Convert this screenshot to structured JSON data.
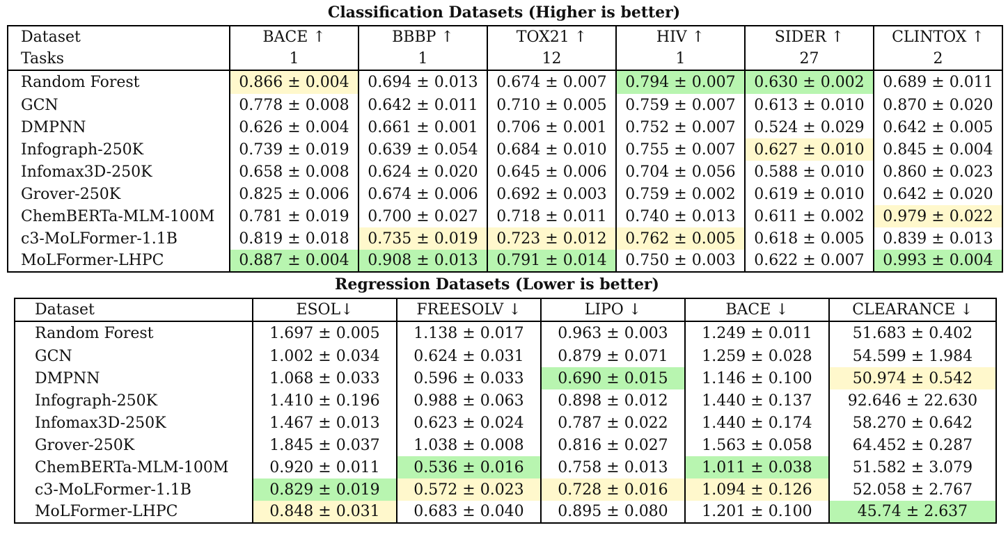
{
  "classification": {
    "title": "Classification Datasets (Higher is better)",
    "header_label_1": "Dataset",
    "header_label_2": "Tasks",
    "columns": [
      {
        "name": "BACE ↑",
        "tasks": "1"
      },
      {
        "name": "BBBP ↑",
        "tasks": "1"
      },
      {
        "name": "TOX21 ↑",
        "tasks": "12"
      },
      {
        "name": "HIV ↑",
        "tasks": "1"
      },
      {
        "name": "SIDER ↑",
        "tasks": "27"
      },
      {
        "name": "CLINTOX ↑",
        "tasks": "2"
      }
    ],
    "rows": [
      {
        "model": "Random Forest",
        "cells": [
          {
            "v": "0.866 ± 0.004",
            "hl": "yellow"
          },
          {
            "v": "0.694 ± 0.013",
            "hl": ""
          },
          {
            "v": "0.674 ± 0.007",
            "hl": ""
          },
          {
            "v": "0.794 ± 0.007",
            "hl": "green"
          },
          {
            "v": "0.630 ± 0.002",
            "hl": "green"
          },
          {
            "v": "0.689 ± 0.011",
            "hl": ""
          }
        ]
      },
      {
        "model": "GCN",
        "cells": [
          {
            "v": "0.778 ± 0.008",
            "hl": ""
          },
          {
            "v": "0.642 ± 0.011",
            "hl": ""
          },
          {
            "v": "0.710 ± 0.005",
            "hl": ""
          },
          {
            "v": "0.759 ± 0.007",
            "hl": ""
          },
          {
            "v": "0.613 ± 0.010",
            "hl": ""
          },
          {
            "v": "0.870 ± 0.020",
            "hl": ""
          }
        ]
      },
      {
        "model": "DMPNN",
        "cells": [
          {
            "v": "0.626 ± 0.004",
            "hl": ""
          },
          {
            "v": "0.661 ± 0.001",
            "hl": ""
          },
          {
            "v": "0.706 ± 0.001",
            "hl": ""
          },
          {
            "v": "0.752 ± 0.007",
            "hl": ""
          },
          {
            "v": "0.524 ± 0.029",
            "hl": ""
          },
          {
            "v": "0.642 ± 0.005",
            "hl": ""
          }
        ]
      },
      {
        "model": "Infograph-250K",
        "cells": [
          {
            "v": "0.739 ± 0.019",
            "hl": ""
          },
          {
            "v": "0.639 ± 0.054",
            "hl": ""
          },
          {
            "v": "0.684 ± 0.010",
            "hl": ""
          },
          {
            "v": "0.755 ± 0.007",
            "hl": ""
          },
          {
            "v": "0.627 ± 0.010",
            "hl": "yellow"
          },
          {
            "v": "0.845 ± 0.004",
            "hl": ""
          }
        ]
      },
      {
        "model": "Infomax3D-250K",
        "cells": [
          {
            "v": "0.658 ± 0.008",
            "hl": ""
          },
          {
            "v": "0.624 ± 0.020",
            "hl": ""
          },
          {
            "v": "0.645 ± 0.006",
            "hl": ""
          },
          {
            "v": "0.704 ± 0.056",
            "hl": ""
          },
          {
            "v": "0.588 ± 0.010",
            "hl": ""
          },
          {
            "v": "0.860 ± 0.023",
            "hl": ""
          }
        ]
      },
      {
        "model": "Grover-250K",
        "cells": [
          {
            "v": "0.825 ± 0.006",
            "hl": ""
          },
          {
            "v": "0.674 ± 0.006",
            "hl": ""
          },
          {
            "v": "0.692 ± 0.003",
            "hl": ""
          },
          {
            "v": "0.759 ± 0.002",
            "hl": ""
          },
          {
            "v": "0.619 ± 0.010",
            "hl": ""
          },
          {
            "v": "0.642 ± 0.020",
            "hl": ""
          }
        ]
      },
      {
        "model": "ChemBERTa-MLM-100M",
        "cells": [
          {
            "v": "0.781 ± 0.019",
            "hl": ""
          },
          {
            "v": "0.700 ± 0.027",
            "hl": ""
          },
          {
            "v": "0.718 ± 0.011",
            "hl": ""
          },
          {
            "v": "0.740 ± 0.013",
            "hl": ""
          },
          {
            "v": "0.611 ± 0.002",
            "hl": ""
          },
          {
            "v": "0.979 ± 0.022",
            "hl": "yellow"
          }
        ]
      },
      {
        "model": "c3-MoLFormer-1.1B",
        "cells": [
          {
            "v": "0.819 ± 0.018",
            "hl": ""
          },
          {
            "v": "0.735 ± 0.019",
            "hl": "yellow"
          },
          {
            "v": "0.723 ± 0.012",
            "hl": "yellow"
          },
          {
            "v": "0.762 ± 0.005",
            "hl": "yellow"
          },
          {
            "v": "0.618 ± 0.005",
            "hl": ""
          },
          {
            "v": "0.839 ± 0.013",
            "hl": ""
          }
        ]
      },
      {
        "model": "MoLFormer-LHPC",
        "cells": [
          {
            "v": "0.887 ± 0.004",
            "hl": "green"
          },
          {
            "v": "0.908 ± 0.013",
            "hl": "green"
          },
          {
            "v": "0.791 ± 0.014",
            "hl": "green"
          },
          {
            "v": "0.750 ± 0.003",
            "hl": ""
          },
          {
            "v": "0.622 ± 0.007",
            "hl": ""
          },
          {
            "v": "0.993 ± 0.004",
            "hl": "green"
          }
        ]
      }
    ]
  },
  "regression": {
    "title": "Regression Datasets (Lower is better)",
    "header_label": "Dataset",
    "columns": [
      "ESOL↓",
      "FREESOLV ↓",
      "LIPO ↓",
      "BACE ↓",
      "CLEARANCE ↓"
    ],
    "rows": [
      {
        "model": "Random Forest",
        "cells": [
          {
            "v": "1.697 ± 0.005",
            "hl": ""
          },
          {
            "v": "1.138 ± 0.017",
            "hl": ""
          },
          {
            "v": "0.963 ± 0.003",
            "hl": ""
          },
          {
            "v": "1.249 ± 0.011",
            "hl": ""
          },
          {
            "v": "51.683 ± 0.402",
            "hl": ""
          }
        ]
      },
      {
        "model": "GCN",
        "cells": [
          {
            "v": "1.002 ± 0.034",
            "hl": ""
          },
          {
            "v": "0.624 ± 0.031",
            "hl": ""
          },
          {
            "v": "0.879 ± 0.071",
            "hl": ""
          },
          {
            "v": "1.259 ± 0.028",
            "hl": ""
          },
          {
            "v": "54.599 ± 1.984",
            "hl": ""
          }
        ]
      },
      {
        "model": "DMPNN",
        "cells": [
          {
            "v": "1.068 ± 0.033",
            "hl": ""
          },
          {
            "v": "0.596 ± 0.033",
            "hl": ""
          },
          {
            "v": "0.690 ± 0.015",
            "hl": "green"
          },
          {
            "v": "1.146 ± 0.100",
            "hl": ""
          },
          {
            "v": "50.974 ± 0.542",
            "hl": "yellow"
          }
        ]
      },
      {
        "model": "Infograph-250K",
        "cells": [
          {
            "v": "1.410 ± 0.196",
            "hl": ""
          },
          {
            "v": "0.988 ± 0.063",
            "hl": ""
          },
          {
            "v": "0.898 ± 0.012",
            "hl": ""
          },
          {
            "v": "1.440 ± 0.137",
            "hl": ""
          },
          {
            "v": "92.646 ± 22.630",
            "hl": ""
          }
        ]
      },
      {
        "model": "Infomax3D-250K",
        "cells": [
          {
            "v": "1.467 ± 0.013",
            "hl": ""
          },
          {
            "v": "0.623 ± 0.024",
            "hl": ""
          },
          {
            "v": "0.787 ± 0.022",
            "hl": ""
          },
          {
            "v": "1.440 ± 0.174",
            "hl": ""
          },
          {
            "v": "58.270 ± 0.642",
            "hl": ""
          }
        ]
      },
      {
        "model": "Grover-250K",
        "cells": [
          {
            "v": "1.845 ± 0.037",
            "hl": ""
          },
          {
            "v": "1.038 ± 0.008",
            "hl": ""
          },
          {
            "v": "0.816 ± 0.027",
            "hl": ""
          },
          {
            "v": "1.563 ± 0.058",
            "hl": ""
          },
          {
            "v": "64.452 ± 0.287",
            "hl": ""
          }
        ]
      },
      {
        "model": "ChemBERTa-MLM-100M",
        "cells": [
          {
            "v": "0.920 ± 0.011",
            "hl": ""
          },
          {
            "v": "0.536 ± 0.016",
            "hl": "green"
          },
          {
            "v": "0.758 ± 0.013",
            "hl": ""
          },
          {
            "v": "1.011 ± 0.038",
            "hl": "green"
          },
          {
            "v": "51.582 ± 3.079",
            "hl": ""
          }
        ]
      },
      {
        "model": "c3-MoLFormer-1.1B",
        "cells": [
          {
            "v": "0.829 ± 0.019",
            "hl": "green"
          },
          {
            "v": "0.572 ± 0.023",
            "hl": "yellow"
          },
          {
            "v": "0.728 ± 0.016",
            "hl": "yellow"
          },
          {
            "v": "1.094 ± 0.126",
            "hl": "yellow"
          },
          {
            "v": "52.058 ± 2.767",
            "hl": ""
          }
        ]
      },
      {
        "model": "MoLFormer-LHPC",
        "cells": [
          {
            "v": "0.848 ± 0.031",
            "hl": "yellow"
          },
          {
            "v": "0.683 ± 0.040",
            "hl": ""
          },
          {
            "v": "0.895 ± 0.080",
            "hl": ""
          },
          {
            "v": "1.201 ± 0.100",
            "hl": ""
          },
          {
            "v": "45.74 ± 2.637",
            "hl": "green"
          }
        ]
      }
    ]
  },
  "colors": {
    "best": "#b8f5b0",
    "second_best": "#fff8cc",
    "border": "#000000"
  }
}
